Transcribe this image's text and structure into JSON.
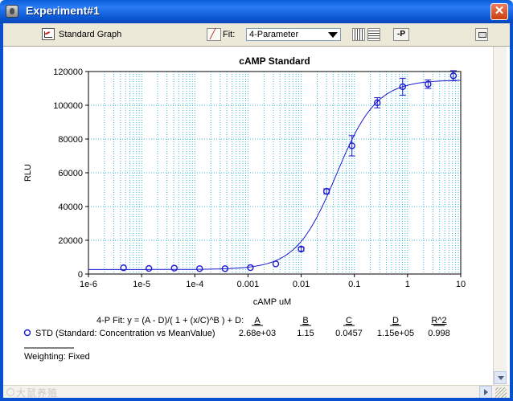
{
  "window": {
    "title": "Experiment#1",
    "close_glyph": "✕",
    "watermark": "大鼠养殖"
  },
  "toolbar": {
    "graph_label": "Standard Graph",
    "fit_label": "Fit:",
    "fit_value": "4-Parameter",
    "p_button": "-P"
  },
  "chart_data": {
    "type": "scatter",
    "title": "cAMP Standard",
    "xlabel": "cAMP uM",
    "ylabel": "RLU",
    "x_scale": "log",
    "xlim": [
      1e-06,
      10
    ],
    "ylim": [
      0,
      120000
    ],
    "x_ticks": [
      {
        "value": 1e-06,
        "label": "1e-6"
      },
      {
        "value": 1e-05,
        "label": "1e-5"
      },
      {
        "value": 0.0001,
        "label": "1e-4"
      },
      {
        "value": 0.001,
        "label": "0.001"
      },
      {
        "value": 0.01,
        "label": "0.01"
      },
      {
        "value": 0.1,
        "label": "0.1"
      },
      {
        "value": 1,
        "label": "1"
      },
      {
        "value": 10,
        "label": "10"
      }
    ],
    "y_ticks": [
      {
        "value": 0,
        "label": "0"
      },
      {
        "value": 20000,
        "label": "20000"
      },
      {
        "value": 40000,
        "label": "40000"
      },
      {
        "value": 60000,
        "label": "60000"
      },
      {
        "value": 80000,
        "label": "80000"
      },
      {
        "value": 100000,
        "label": "100000"
      },
      {
        "value": 120000,
        "label": "120000"
      }
    ],
    "grid": true,
    "colors": {
      "series": "#1a1ad0",
      "grid": "#38b8d8"
    },
    "series": [
      {
        "name": "STD (Standard: Concentration vs MeanValue)",
        "points": [
          {
            "x": 4.57e-06,
            "y": 3700,
            "err": 0
          },
          {
            "x": 1.37e-05,
            "y": 3300,
            "err": 0
          },
          {
            "x": 4.11e-05,
            "y": 3500,
            "err": 0
          },
          {
            "x": 0.000123,
            "y": 3200,
            "err": 0
          },
          {
            "x": 0.00037,
            "y": 3200,
            "err": 0
          },
          {
            "x": 0.00111,
            "y": 3800,
            "err": 0
          },
          {
            "x": 0.00333,
            "y": 6000,
            "err": 0
          },
          {
            "x": 0.01,
            "y": 14800,
            "err": 1200
          },
          {
            "x": 0.03,
            "y": 49000,
            "err": 1500
          },
          {
            "x": 0.09,
            "y": 76000,
            "err": 6000
          },
          {
            "x": 0.27,
            "y": 101500,
            "err": 3000
          },
          {
            "x": 0.81,
            "y": 111000,
            "err": 5000
          },
          {
            "x": 2.43,
            "y": 112500,
            "err": 2500
          },
          {
            "x": 7.29,
            "y": 117500,
            "err": 3000
          }
        ]
      }
    ],
    "fit": {
      "model_label": "4-P Fit:  y = (A - D)/( 1 + (x/C)^B ) + D:",
      "headers": [
        "A",
        "B",
        "C",
        "D",
        "R^2"
      ],
      "row_label": "STD (Standard: Concentration vs MeanValue)",
      "values": [
        "2.68e+03",
        "1.15",
        "0.0457",
        "1.15e+05",
        "0.998"
      ],
      "params": {
        "A": 2680,
        "B": 1.15,
        "C": 0.0457,
        "D": 115000
      },
      "weighting": "Weighting: Fixed"
    }
  }
}
